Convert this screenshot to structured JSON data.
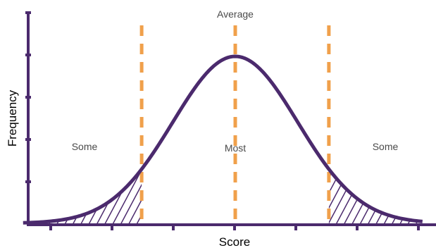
{
  "chart_data": {
    "type": "area",
    "title": "",
    "xlabel": "Score",
    "ylabel": "Frequency",
    "distribution": "normal",
    "x_range_sd": [
      -3.4,
      3.0
    ],
    "reference_lines_sd": [
      -1.5,
      0,
      1.5
    ],
    "shaded_tails": true,
    "region_labels": {
      "left": "Some",
      "center": "Most",
      "right": "Some"
    },
    "center_line_label": "Average",
    "x_tick_count": 7,
    "y_tick_count": 5,
    "colors": {
      "curve": "#4b2a6d",
      "axes": "#4b2a6d",
      "reference_lines": "#f0a04b",
      "hatch": "#4b2a6d"
    }
  }
}
